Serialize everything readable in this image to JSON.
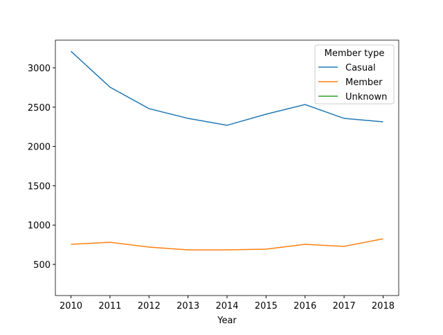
{
  "chart_data": {
    "type": "line",
    "x_label": "Year",
    "x": [
      2010,
      2011,
      2012,
      2013,
      2014,
      2015,
      2016,
      2017,
      2018
    ],
    "series": [
      {
        "name": "Casual",
        "color": "#1f77b4",
        "values": [
          3211,
          2754,
          2481,
          2357,
          2269,
          2410,
          2533,
          2357,
          2313
        ]
      },
      {
        "name": "Member",
        "color": "#ff7f0e",
        "values": [
          755,
          782,
          720,
          685,
          685,
          694,
          755,
          729,
          826
        ]
      },
      {
        "name": "Unknown",
        "color": "#2ca02c",
        "values": [
          null,
          null,
          null,
          null,
          null,
          null,
          null,
          null,
          null
        ]
      }
    ],
    "xlim": [
      2009.6,
      2018.4
    ],
    "xticks": [
      2010,
      2011,
      2012,
      2013,
      2014,
      2015,
      2016,
      2017,
      2018
    ],
    "ylim": [
      104,
      3352
    ],
    "yticks": [
      500,
      1000,
      1500,
      2000,
      2500,
      3000
    ],
    "legend_title": "Member type",
    "legend": "upper right"
  }
}
